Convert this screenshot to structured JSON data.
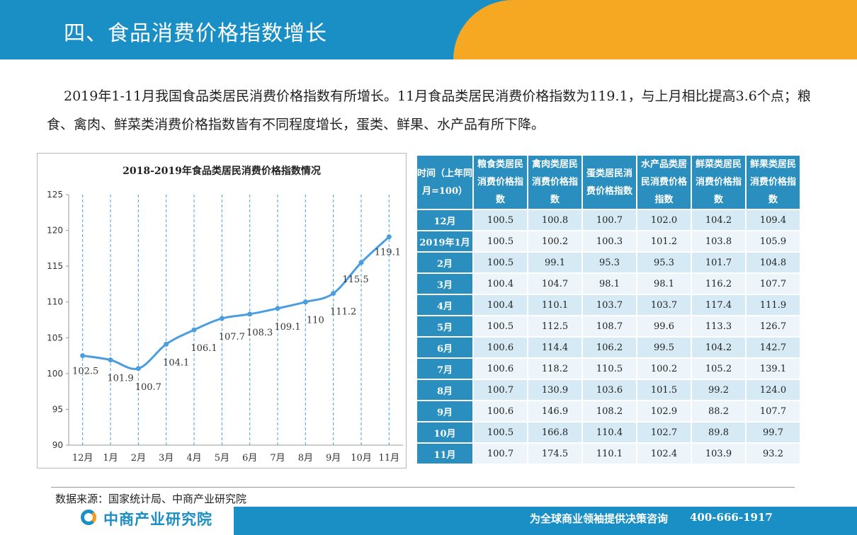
{
  "header": {
    "title": "四、食品消费价格指数增长"
  },
  "intro": {
    "paragraph": "2019年1-11月我国食品类居民消费价格指数有所增长。11月食品类居民消费价格指数为119.1，与上月相比提高3.6个点；粮食、禽肉、鲜菜类消费价格指数皆有不同程度增长，蛋类、鲜果、水产品有所下降。"
  },
  "chart_data": {
    "type": "line",
    "title": "2018-2019年食品类居民消费价格指数情况",
    "categories": [
      "12月",
      "1月",
      "2月",
      "3月",
      "4月",
      "5月",
      "6月",
      "7月",
      "8月",
      "9月",
      "10月",
      "11月"
    ],
    "series": [
      {
        "values": [
          102.5,
          101.9,
          100.7,
          104.1,
          106.1,
          107.7,
          108.3,
          109.1,
          110,
          111.2,
          115.5,
          119.1
        ]
      }
    ],
    "data_labels": [
      "102.5",
      "101.9",
      "100.7",
      "104.1",
      "106.1",
      "107.7",
      "108.3",
      "109.1",
      "110",
      "111.2",
      "115.5",
      "119.1"
    ],
    "yticks": [
      "125",
      "120",
      "115",
      "110",
      "105",
      "100",
      "95",
      "90"
    ],
    "ylim": [
      90,
      125
    ],
    "color": "#4a9ee0",
    "grid": "vertical dashed"
  },
  "table": {
    "header": [
      "时间（上年同月=100）",
      "粮食类居民消费价格指数",
      "禽肉类居民消费价格指数",
      "蛋类居民消费价格指数",
      "水产品类居民消费价格指数",
      "鲜菜类居民消费价格指数",
      "鲜果类居民消费价格指数"
    ],
    "rows": [
      {
        "time": "12月",
        "values": [
          "100.5",
          "100.8",
          "100.7",
          "102.0",
          "104.2",
          "109.4"
        ]
      },
      {
        "time": "2019年1月",
        "values": [
          "100.5",
          "100.2",
          "100.3",
          "101.2",
          "103.8",
          "105.9"
        ]
      },
      {
        "time": "2月",
        "values": [
          "100.5",
          "99.1",
          "95.3",
          "95.3",
          "101.7",
          "104.8"
        ]
      },
      {
        "time": "3月",
        "values": [
          "100.4",
          "104.7",
          "98.1",
          "98.1",
          "116.2",
          "107.7"
        ]
      },
      {
        "time": "4月",
        "values": [
          "100.4",
          "110.1",
          "103.7",
          "103.7",
          "117.4",
          "111.9"
        ]
      },
      {
        "time": "5月",
        "values": [
          "100.5",
          "112.5",
          "108.7",
          "99.6",
          "113.3",
          "126.7"
        ]
      },
      {
        "time": "6月",
        "values": [
          "100.6",
          "114.4",
          "106.2",
          "99.5",
          "104.2",
          "142.7"
        ]
      },
      {
        "time": "7月",
        "values": [
          "100.6",
          "118.2",
          "110.5",
          "100.2",
          "105.2",
          "139.1"
        ]
      },
      {
        "time": "8月",
        "values": [
          "100.7",
          "130.9",
          "103.6",
          "101.5",
          "99.2",
          "124.0"
        ]
      },
      {
        "time": "9月",
        "values": [
          "100.6",
          "146.9",
          "108.2",
          "102.9",
          "88.2",
          "107.7"
        ]
      },
      {
        "time": "10月",
        "values": [
          "100.5",
          "166.8",
          "110.4",
          "102.7",
          "89.8",
          "99.7"
        ]
      },
      {
        "time": "11月",
        "values": [
          "100.7",
          "174.5",
          "110.1",
          "102.4",
          "103.9",
          "93.2"
        ]
      }
    ]
  },
  "footer": {
    "source": "数据来源：国家统计局、中商产业研究院",
    "logo": "中商产业研究院",
    "slogan": "为全球商业领袖提供决策咨询",
    "phone": "400-666-1917"
  },
  "colors": {
    "header_blue": "#1a8fc6",
    "header_orange": "#f7a823",
    "table_head": "#2a8fbf"
  }
}
